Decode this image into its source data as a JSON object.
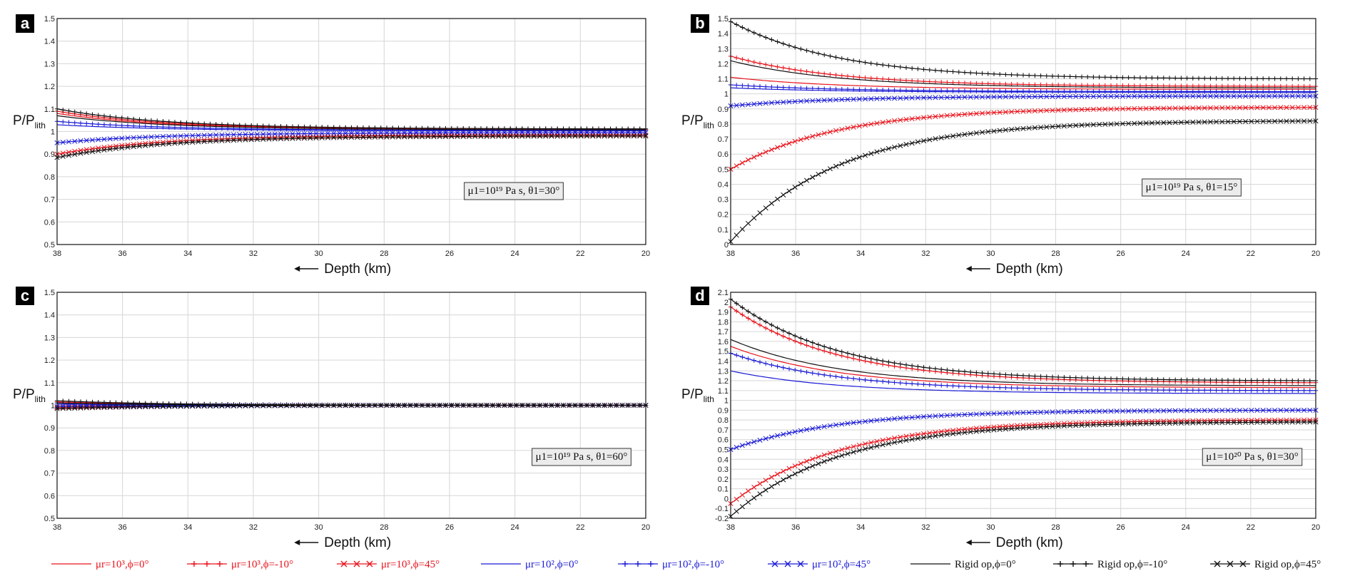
{
  "x_label": "Depth (km)",
  "y_label_main": "P/P",
  "y_label_sub": "lith",
  "x_ticks": [
    "38",
    "36",
    "34",
    "32",
    "30",
    "28",
    "26",
    "24",
    "22",
    "20"
  ],
  "colors": {
    "red": "#e8141c",
    "blue": "#1b1bd6",
    "black": "#111111"
  },
  "legend": [
    {
      "label": "μr=10³,ϕ=0°",
      "color": "#e8141c",
      "marker": "none"
    },
    {
      "label": "μr=10³,ϕ=-10°",
      "color": "#e8141c",
      "marker": "plus"
    },
    {
      "label": "μr=10³,ϕ=45°",
      "color": "#e8141c",
      "marker": "x"
    },
    {
      "label": "μr=10²,ϕ=0°",
      "color": "#1b1bd6",
      "marker": "none"
    },
    {
      "label": "μr=10²,ϕ=-10°",
      "color": "#1b1bd6",
      "marker": "plus"
    },
    {
      "label": "μr=10²,ϕ=45°",
      "color": "#1b1bd6",
      "marker": "x"
    },
    {
      "label": "Rigid op,ϕ=0°",
      "color": "#111111",
      "marker": "none"
    },
    {
      "label": "Rigid op,ϕ=-10°",
      "color": "#111111",
      "marker": "plus"
    },
    {
      "label": "Rigid op,ϕ=45°",
      "color": "#111111",
      "marker": "x"
    }
  ],
  "chart_data": [
    {
      "panel": "a",
      "type": "line",
      "annotation": "μ1=10¹⁹ Pa s, θ1=30°",
      "xlim": [
        38,
        20
      ],
      "ylim": [
        0.5,
        1.5
      ],
      "y_ticks": [
        "0.5",
        "0.6",
        "0.7",
        "0.8",
        "0.9",
        "1",
        "1.1",
        "1.2",
        "1.3",
        "1.4",
        "1.5"
      ],
      "series": [
        {
          "legend": 0,
          "start": 1.08,
          "end": 1.008
        },
        {
          "legend": 1,
          "start": 1.09,
          "end": 1.01
        },
        {
          "legend": 2,
          "start": 0.9,
          "end": 0.985
        },
        {
          "legend": 3,
          "start": 1.03,
          "end": 1.003
        },
        {
          "legend": 4,
          "start": 1.045,
          "end": 1.005
        },
        {
          "legend": 5,
          "start": 0.95,
          "end": 0.995
        },
        {
          "legend": 6,
          "start": 1.07,
          "end": 1.008
        },
        {
          "legend": 7,
          "start": 1.1,
          "end": 1.012
        },
        {
          "legend": 8,
          "start": 0.885,
          "end": 0.98
        }
      ]
    },
    {
      "panel": "b",
      "type": "line",
      "annotation": "μ1=10¹⁹ Pa s, θ1=15°",
      "xlim": [
        38,
        20
      ],
      "ylim": [
        0,
        1.5
      ],
      "y_ticks": [
        "0",
        "0.1",
        "0.2",
        "0.3",
        "0.4",
        "0.5",
        "0.6",
        "0.7",
        "0.8",
        "0.9",
        "1",
        "1.1",
        "1.2",
        "1.3",
        "1.4",
        "1.5"
      ],
      "series": [
        {
          "legend": 0,
          "start": 1.11,
          "end": 1.03
        },
        {
          "legend": 1,
          "start": 1.25,
          "end": 1.05
        },
        {
          "legend": 2,
          "start": 0.5,
          "end": 0.91
        },
        {
          "legend": 3,
          "start": 1.04,
          "end": 1.01
        },
        {
          "legend": 4,
          "start": 1.06,
          "end": 1.015
        },
        {
          "legend": 5,
          "start": 0.92,
          "end": 0.985
        },
        {
          "legend": 6,
          "start": 1.22,
          "end": 1.04
        },
        {
          "legend": 7,
          "start": 1.48,
          "end": 1.1
        },
        {
          "legend": 8,
          "start": 0.02,
          "end": 0.82
        }
      ]
    },
    {
      "panel": "c",
      "type": "line",
      "annotation": "μ1=10¹⁹ Pa s, θ1=60°",
      "xlim": [
        38,
        20
      ],
      "ylim": [
        0.5,
        1.5
      ],
      "y_ticks": [
        "0.5",
        "0.6",
        "0.7",
        "0.8",
        "0.9",
        "1",
        "1.1",
        "1.2",
        "1.3",
        "1.4",
        "1.5"
      ],
      "series": [
        {
          "legend": 0,
          "start": 1.01,
          "end": 1.0
        },
        {
          "legend": 1,
          "start": 1.015,
          "end": 1.0
        },
        {
          "legend": 2,
          "start": 0.99,
          "end": 1.0
        },
        {
          "legend": 3,
          "start": 1.005,
          "end": 1.0
        },
        {
          "legend": 4,
          "start": 1.01,
          "end": 1.0
        },
        {
          "legend": 5,
          "start": 0.995,
          "end": 1.0
        },
        {
          "legend": 6,
          "start": 1.01,
          "end": 1.0
        },
        {
          "legend": 7,
          "start": 1.02,
          "end": 1.0
        },
        {
          "legend": 8,
          "start": 0.985,
          "end": 1.0
        }
      ]
    },
    {
      "panel": "d",
      "type": "line",
      "annotation": "μ1=10²⁰ Pa s, θ1=30°",
      "xlim": [
        38,
        20
      ],
      "ylim": [
        -0.2,
        2.1
      ],
      "y_ticks": [
        "-0.2",
        "-0.1",
        "0",
        "0.1",
        "0.2",
        "0.3",
        "0.4",
        "0.5",
        "0.6",
        "0.7",
        "0.8",
        "0.9",
        "1",
        "1.1",
        "1.2",
        "1.3",
        "1.4",
        "1.5",
        "1.6",
        "1.7",
        "1.8",
        "1.9",
        "2",
        "2.1"
      ],
      "series": [
        {
          "legend": 0,
          "start": 1.55,
          "end": 1.13
        },
        {
          "legend": 1,
          "start": 1.95,
          "end": 1.18
        },
        {
          "legend": 2,
          "start": -0.05,
          "end": 0.8
        },
        {
          "legend": 3,
          "start": 1.3,
          "end": 1.07
        },
        {
          "legend": 4,
          "start": 1.48,
          "end": 1.1
        },
        {
          "legend": 5,
          "start": 0.5,
          "end": 0.9
        },
        {
          "legend": 6,
          "start": 1.62,
          "end": 1.15
        },
        {
          "legend": 7,
          "start": 2.03,
          "end": 1.2
        },
        {
          "legend": 8,
          "start": -0.18,
          "end": 0.78
        }
      ]
    }
  ]
}
